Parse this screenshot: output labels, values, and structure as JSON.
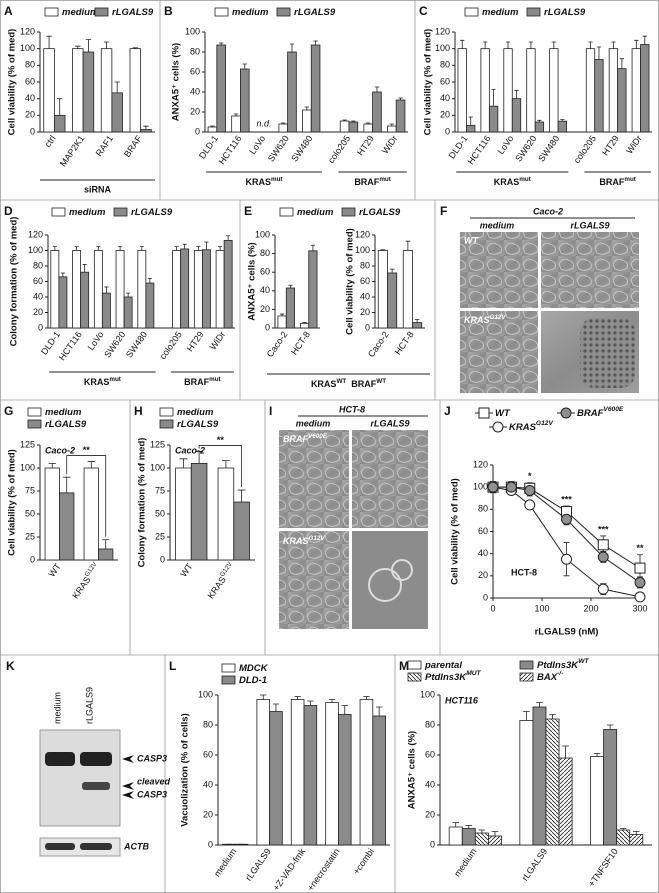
{
  "chart_data": [
    {
      "panel": "A",
      "type": "bar",
      "ylabel": "Cell viability (% of med)",
      "xlabel": "siRNA",
      "categories": [
        "ctrl",
        "MAP2K1",
        "RAF1",
        "BRAF"
      ],
      "series": [
        {
          "name": "medium",
          "color": "#ffffff",
          "values": [
            100,
            100,
            100,
            100
          ],
          "errors": [
            15,
            3,
            8,
            1
          ]
        },
        {
          "name": "rLGALS9",
          "color": "#8a8a8a",
          "values": [
            20,
            96,
            47,
            3
          ],
          "errors": [
            20,
            15,
            13,
            4
          ]
        }
      ],
      "ylim": [
        0,
        120
      ],
      "yticks": [
        0,
        20,
        40,
        60,
        80,
        100,
        120
      ]
    },
    {
      "panel": "B",
      "type": "bar",
      "ylabel": "ANXA5⁺ cells (%)",
      "category_groups": [
        {
          "label": "KRAS",
          "sup": "mut",
          "categories": [
            "DLD-1",
            "HCT116",
            "LoVo",
            "SW620",
            "SW480"
          ]
        },
        {
          "label": "BRAF",
          "sup": "mut",
          "categories": [
            "colo205",
            "HT29",
            "WiDr"
          ]
        }
      ],
      "series": [
        {
          "name": "medium",
          "color": "#ffffff",
          "values": [
            5,
            16,
            null,
            8,
            22,
            11,
            8,
            6
          ],
          "errors": [
            1,
            2,
            null,
            1,
            3,
            1,
            1,
            2
          ]
        },
        {
          "name": "rLGALS9",
          "color": "#8a8a8a",
          "values": [
            87,
            63,
            null,
            80,
            87,
            10,
            40,
            32
          ],
          "errors": [
            2,
            5,
            null,
            8,
            4,
            1,
            5,
            2
          ]
        }
      ],
      "annotations": [
        {
          "text": "n.d.",
          "category": "LoVo"
        }
      ],
      "ylim": [
        0,
        100
      ],
      "yticks": [
        0,
        20,
        40,
        60,
        80,
        100
      ]
    },
    {
      "panel": "C",
      "type": "bar",
      "ylabel": "Cell viability (% of med)",
      "category_groups": [
        {
          "label": "KRAS",
          "sup": "mut",
          "categories": [
            "DLD-1",
            "HCT116",
            "LoVo",
            "SW620",
            "SW480"
          ]
        },
        {
          "label": "BRAF",
          "sup": "mut",
          "categories": [
            "colo205",
            "HT29",
            "WiDr"
          ]
        }
      ],
      "series": [
        {
          "name": "medium",
          "color": "#ffffff",
          "values": [
            100,
            100,
            100,
            100,
            100,
            100,
            100,
            100
          ],
          "errors": [
            10,
            8,
            8,
            8,
            8,
            8,
            8,
            10
          ]
        },
        {
          "name": "rLGALS9",
          "color": "#8a8a8a",
          "values": [
            8,
            31,
            40,
            12,
            13,
            87,
            76,
            105
          ],
          "errors": [
            10,
            20,
            10,
            2,
            2,
            15,
            12,
            10
          ]
        }
      ],
      "ylim": [
        0,
        120
      ],
      "yticks": [
        0,
        20,
        40,
        60,
        80,
        100,
        120
      ]
    },
    {
      "panel": "D",
      "type": "bar",
      "ylabel": "Colony formation (% of med)",
      "category_groups": [
        {
          "label": "KRAS",
          "sup": "mut",
          "categories": [
            "DLD-1",
            "HCT116",
            "LoVo",
            "SW620",
            "SW480"
          ]
        },
        {
          "label": "BRAF",
          "sup": "mut",
          "categories": [
            "colo205",
            "HT29",
            "WiDr"
          ]
        }
      ],
      "series": [
        {
          "name": "medium",
          "color": "#ffffff",
          "values": [
            100,
            100,
            100,
            100,
            100,
            100,
            100,
            100
          ],
          "errors": [
            5,
            5,
            5,
            5,
            5,
            5,
            5,
            5
          ]
        },
        {
          "name": "rLGALS9",
          "color": "#8a8a8a",
          "values": [
            66,
            72,
            45,
            40,
            58,
            102,
            101,
            113
          ],
          "errors": [
            5,
            10,
            8,
            5,
            6,
            6,
            10,
            6
          ]
        }
      ],
      "ylim": [
        0,
        120
      ],
      "yticks": [
        0,
        20,
        40,
        60,
        80,
        100,
        120
      ]
    },
    {
      "panel": "E",
      "type": "bar",
      "ylabel": "ANXA5⁺ cells (%)",
      "categories": [
        "Caco-2",
        "HCT-8"
      ],
      "series": [
        {
          "name": "medium",
          "color": "#ffffff",
          "values": [
            13,
            5
          ],
          "errors": [
            2,
            1
          ]
        },
        {
          "name": "rLGALS9",
          "color": "#8a8a8a",
          "values": [
            43,
            83
          ],
          "errors": [
            3,
            6
          ]
        }
      ],
      "ylim": [
        0,
        100
      ],
      "yticks": [
        0,
        20,
        40,
        60,
        80,
        100
      ]
    },
    {
      "type": "bar",
      "ylabel": "Cell viability (% of med)",
      "categories": [
        "Caco-2",
        "HCT-8"
      ],
      "series": [
        {
          "color": "#ffffff",
          "values": [
            100,
            100
          ],
          "errors": [
            1,
            12
          ]
        },
        {
          "color": "#8a8a8a",
          "values": [
            71,
            7
          ],
          "errors": [
            5,
            4
          ]
        }
      ],
      "footer": [
        {
          "text": "KRAS",
          "sup": "WT"
        },
        {
          "text": "BRAF",
          "sup": "WT"
        }
      ],
      "ylim": [
        0,
        120
      ],
      "yticks": [
        0,
        20,
        40,
        60,
        80,
        100,
        120
      ]
    },
    {
      "panel": "G",
      "type": "bar",
      "ylabel": "Cell viability (% of med)",
      "note": "Caco-2",
      "categories": [
        "WT",
        "KRAS"
      ],
      "category_sups": [
        null,
        "G12V"
      ],
      "series": [
        {
          "name": "medium",
          "color": "#ffffff",
          "values": [
            100,
            100
          ],
          "errors": [
            5,
            7
          ]
        },
        {
          "name": "rLGALS9",
          "color": "#8a8a8a",
          "values": [
            73,
            12
          ],
          "errors": [
            17,
            10
          ]
        }
      ],
      "annotations": [
        {
          "text": "**"
        }
      ],
      "ylim": [
        0,
        125
      ],
      "yticks": [
        0,
        25,
        50,
        75,
        100,
        125
      ]
    },
    {
      "panel": "H",
      "type": "bar",
      "ylabel": "Colony formation (% of med)",
      "note": "Caco-2",
      "categories": [
        "WT",
        "KRAS"
      ],
      "category_sups": [
        null,
        "G12V"
      ],
      "series": [
        {
          "name": "medium",
          "color": "#ffffff",
          "values": [
            100,
            100
          ],
          "errors": [
            10,
            8
          ]
        },
        {
          "name": "rLGALS9",
          "color": "#8a8a8a",
          "values": [
            105,
            63
          ],
          "errors": [
            13,
            13
          ]
        }
      ],
      "annotations": [
        {
          "text": "**"
        }
      ],
      "ylim": [
        0,
        125
      ],
      "yticks": [
        0,
        25,
        50,
        75,
        100,
        125
      ]
    },
    {
      "panel": "J",
      "type": "line",
      "ylabel": "Cell viability (% of med)",
      "xlabel": "rLGALS9 (nM)",
      "note": "HCT-8",
      "x": [
        0,
        37.5,
        75,
        150,
        225,
        300
      ],
      "series": [
        {
          "name": "WT",
          "marker": "square",
          "color": "#ffffff",
          "values": [
            100,
            100,
            99,
            78,
            48,
            27
          ],
          "errors": [
            5,
            5,
            5,
            5,
            8,
            12
          ]
        },
        {
          "name": "KRAS",
          "name_sup": "G12V",
          "marker": "circle",
          "color": "#ffffff",
          "values": [
            100,
            97,
            84,
            35,
            8,
            1
          ],
          "errors": [
            5,
            3,
            3,
            15,
            5,
            2
          ]
        },
        {
          "name": "BRAF",
          "name_sup": "V600E",
          "marker": "circle",
          "color": "#909090",
          "values": [
            100,
            100,
            97,
            71,
            37,
            14
          ],
          "errors": [
            3,
            5,
            5,
            5,
            5,
            5
          ]
        }
      ],
      "annotations": [
        {
          "text": "*",
          "x": 75
        },
        {
          "text": "***",
          "x": 150
        },
        {
          "text": "***",
          "x": 225
        },
        {
          "text": "**",
          "x": 300
        }
      ],
      "xlim": [
        0,
        300
      ],
      "xticks": [
        0,
        100,
        200,
        300
      ],
      "ylim": [
        0,
        120
      ],
      "yticks": [
        0,
        20,
        40,
        60,
        80,
        100,
        120
      ]
    },
    {
      "panel": "L",
      "type": "bar",
      "ylabel": "Vacuolization (% of cells)",
      "categories": [
        "medium",
        "rLGALS9",
        "+Z-VAD-fmk",
        "+necrostatin",
        "+combi"
      ],
      "series": [
        {
          "name": "MDCK",
          "color": "#ffffff",
          "values": [
            0.5,
            97,
            97,
            95,
            97
          ],
          "errors": [
            0,
            3,
            2,
            2,
            2
          ]
        },
        {
          "name": "DLD-1",
          "color": "#8a8a8a",
          "values": [
            0.5,
            89,
            93,
            87,
            86
          ],
          "errors": [
            0,
            5,
            3,
            6,
            6
          ]
        }
      ],
      "ylim": [
        0,
        100
      ],
      "yticks": [
        0,
        20,
        40,
        60,
        80,
        100
      ]
    },
    {
      "panel": "M",
      "type": "bar",
      "ylabel": "ANXA5⁺ cells (%)",
      "note": "HCT116",
      "categories": [
        "medium",
        "rLGALS9",
        "+TNFSF10"
      ],
      "series": [
        {
          "name": "parental",
          "color": "#ffffff",
          "values": [
            12,
            83,
            59
          ],
          "errors": [
            3,
            6,
            2
          ]
        },
        {
          "name": "PtdIns3K",
          "name_sup": "WT",
          "color": "#8a8a8a",
          "values": [
            11,
            92,
            77
          ],
          "errors": [
            2,
            3,
            3
          ]
        },
        {
          "name": "PtdIns3K",
          "name_sup": "MUT",
          "color": "#ffffff",
          "pattern": "back",
          "values": [
            8,
            84,
            10
          ],
          "errors": [
            2,
            3,
            1
          ]
        },
        {
          "name": "BAX",
          "name_sup": "-/-",
          "color": "#ffffff",
          "pattern": "forward",
          "values": [
            6,
            58,
            7
          ],
          "errors": [
            3,
            8,
            2
          ]
        }
      ],
      "ylim": [
        0,
        100
      ],
      "yticks": [
        0,
        20,
        40,
        60,
        80,
        100
      ]
    }
  ],
  "images": [
    {
      "panel": "F",
      "title": "Caco-2",
      "columns": [
        "medium",
        "rLGALS9"
      ],
      "rows": [
        {
          "label": "WT"
        },
        {
          "label": "KRAS",
          "sup": "G12V"
        }
      ]
    },
    {
      "panel": "I",
      "title": "HCT-8",
      "columns": [
        "medium",
        "rLGALS9"
      ],
      "rows": [
        {
          "label": "BRAF",
          "sup": "V600E"
        },
        {
          "label": "KRAS",
          "sup": "G12V"
        }
      ]
    },
    {
      "panel": "K",
      "columns": [
        "medium",
        "rLGALS9"
      ],
      "bands": [
        {
          "label": [
            "CASP3"
          ]
        },
        {
          "label": [
            "cleaved",
            "CASP3"
          ]
        },
        {
          "label": [
            "ACTB"
          ]
        }
      ]
    }
  ]
}
